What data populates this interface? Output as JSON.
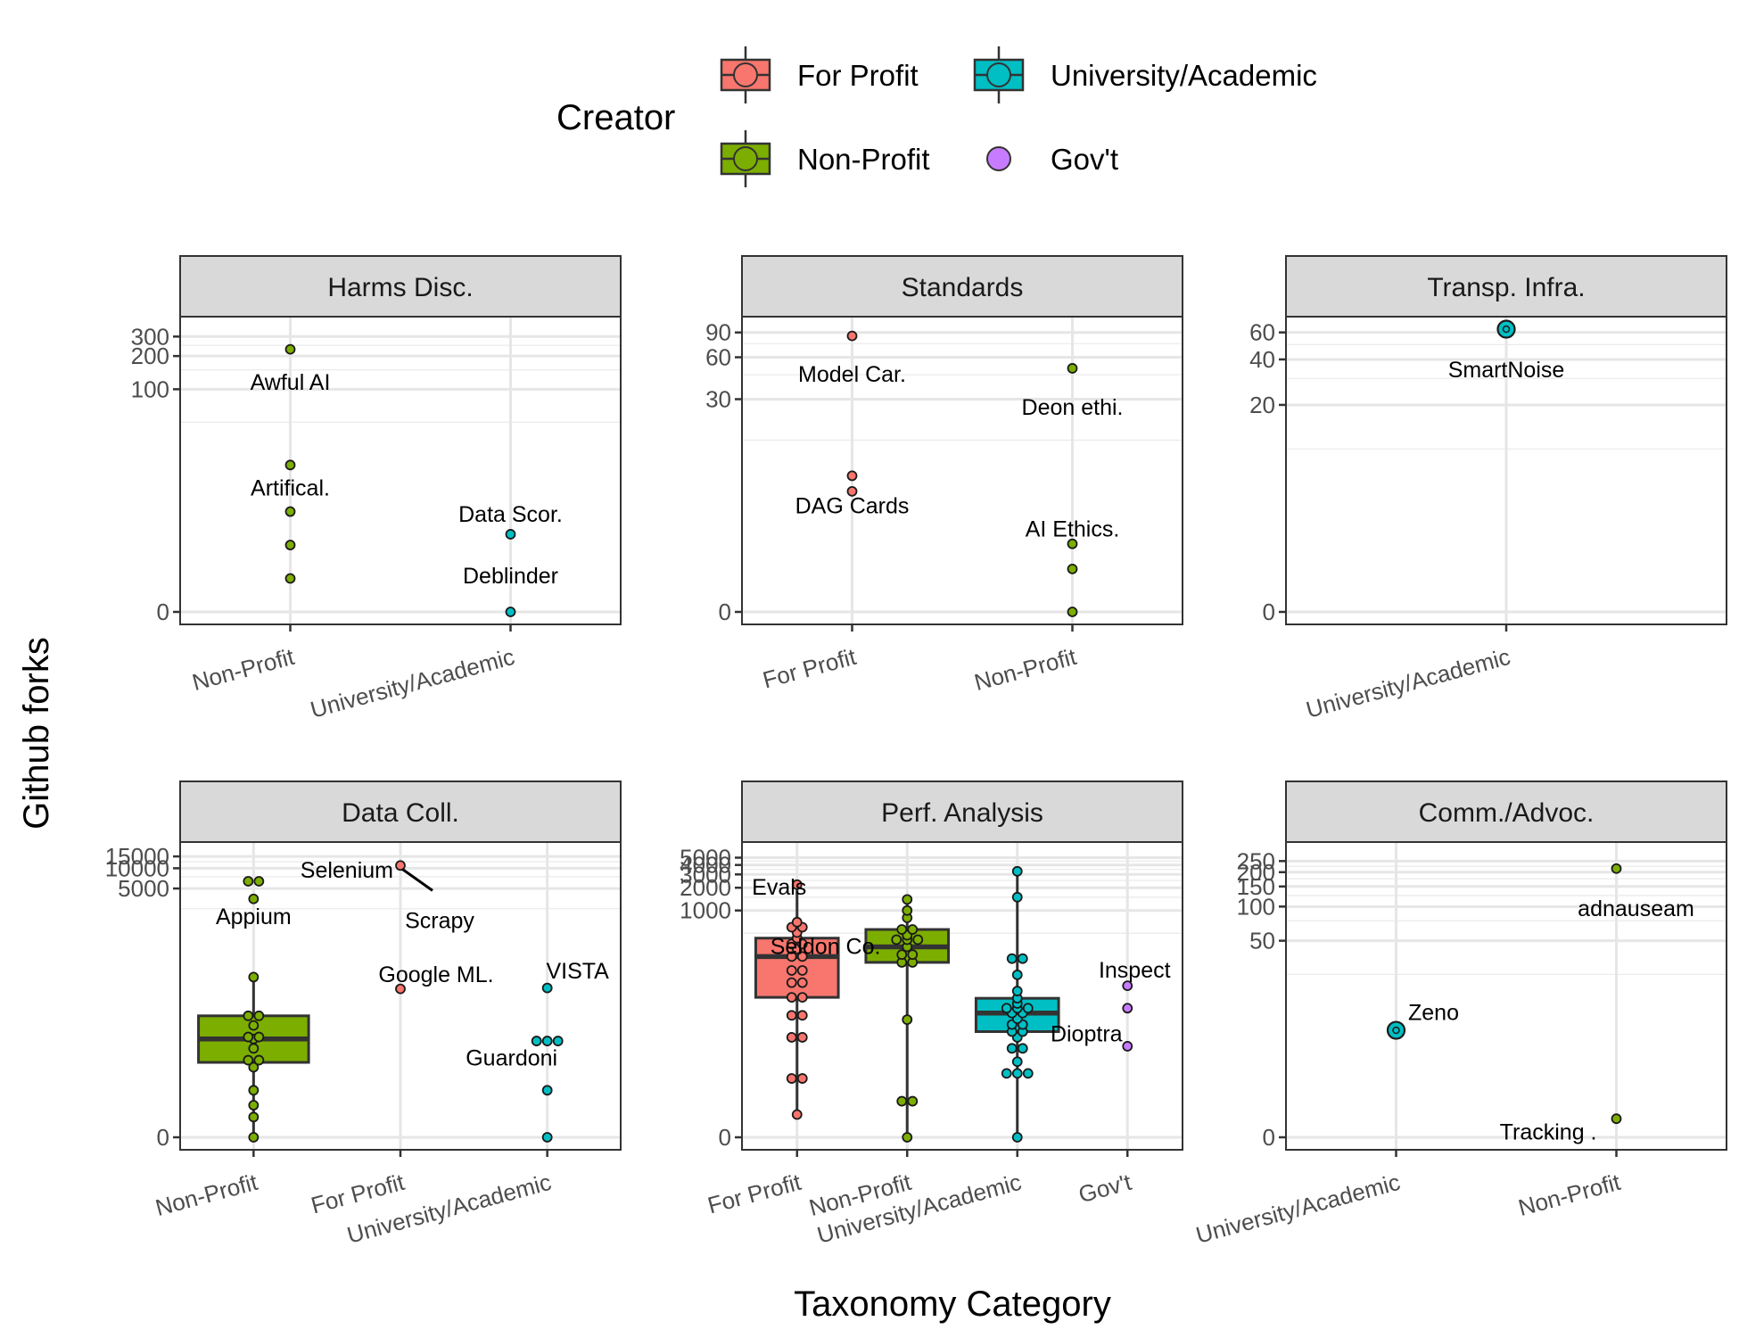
{
  "colors": {
    "For Profit": "#f8766d",
    "Non-Profit": "#7cae00",
    "University/Academic": "#00bfc4",
    "Gov't": "#c77cff"
  },
  "legend": {
    "title": "Creator",
    "items": [
      {
        "label": "For Profit",
        "box": true
      },
      {
        "label": "University/Academic",
        "box": true
      },
      {
        "label": "Non-Profit",
        "box": true
      },
      {
        "label": "Gov't",
        "box": false
      }
    ]
  },
  "axis_titles": {
    "x": "Taxonomy Category",
    "y": "Github forks"
  },
  "chart_data": [
    {
      "type": "scatter",
      "facet": "Harms Disc.",
      "y_scale": "pseudo-log",
      "categories": [
        "Non-Profit",
        "University/Academic"
      ],
      "yticks": [
        0,
        100,
        200,
        300
      ],
      "points": [
        {
          "cat": "Non-Profit",
          "y": 1
        },
        {
          "cat": "Non-Profit",
          "y": 3
        },
        {
          "cat": "Non-Profit",
          "y": 7
        },
        {
          "cat": "Non-Profit",
          "y": 20
        },
        {
          "cat": "Non-Profit",
          "y": 230
        },
        {
          "cat": "University/Academic",
          "y": 0
        },
        {
          "cat": "University/Academic",
          "y": 4
        }
      ],
      "labels": [
        {
          "text": "Awful AI",
          "cat": "Non-Profit",
          "y": 115
        },
        {
          "text": "Artifical.",
          "cat": "Non-Profit",
          "y": 12
        },
        {
          "text": "Data Scor.",
          "cat": "University/Academic",
          "y": 6.5
        },
        {
          "text": "Deblinder",
          "cat": "University/Academic",
          "y": 1.1
        }
      ]
    },
    {
      "type": "scatter",
      "facet": "Standards",
      "y_scale": "pseudo-log",
      "categories": [
        "For Profit",
        "Non-Profit"
      ],
      "yticks": [
        0,
        30,
        60,
        90
      ],
      "points": [
        {
          "cat": "For Profit",
          "y": 6
        },
        {
          "cat": "For Profit",
          "y": 8
        },
        {
          "cat": "For Profit",
          "y": 85
        },
        {
          "cat": "Non-Profit",
          "y": 0
        },
        {
          "cat": "Non-Profit",
          "y": 1
        },
        {
          "cat": "Non-Profit",
          "y": 2
        },
        {
          "cat": "Non-Profit",
          "y": 50
        }
      ],
      "labels": [
        {
          "text": "Model Car.",
          "cat": "For Profit",
          "y": 45
        },
        {
          "text": "DAG Cards",
          "cat": "For Profit",
          "y": 4.5
        },
        {
          "text": "Deon ethi.",
          "cat": "Non-Profit",
          "y": 26
        },
        {
          "text": "AI Ethics.",
          "cat": "Non-Profit",
          "y": 2.8
        }
      ]
    },
    {
      "type": "scatter",
      "facet": "Transp. Infra.",
      "y_scale": "pseudo-log",
      "categories": [
        "University/Academic"
      ],
      "yticks": [
        0,
        20,
        40,
        60
      ],
      "points": [
        {
          "cat": "University/Academic",
          "y": 63,
          "count": 2
        }
      ],
      "labels": [
        {
          "text": "SmartNoise",
          "cat": "University/Academic",
          "y": 34
        }
      ]
    },
    {
      "type": "box",
      "facet": "Data Coll.",
      "y_scale": "pseudo-log",
      "categories": [
        "Non-Profit",
        "For Profit",
        "University/Academic"
      ],
      "yticks": [
        0,
        5000,
        10000,
        15000
      ],
      "boxes": [
        {
          "cat": "Non-Profit",
          "min": 0,
          "q1": 12,
          "median": 28,
          "q3": 63,
          "max": 240
        }
      ],
      "points": [
        {
          "cat": "Non-Profit",
          "y": 0
        },
        {
          "cat": "Non-Profit",
          "y": 1
        },
        {
          "cat": "Non-Profit",
          "y": 2
        },
        {
          "cat": "Non-Profit",
          "y": 4
        },
        {
          "cat": "Non-Profit",
          "y": 10
        },
        {
          "cat": "Non-Profit",
          "y": 13
        },
        {
          "cat": "Non-Profit",
          "y": 13
        },
        {
          "cat": "Non-Profit",
          "y": 20
        },
        {
          "cat": "Non-Profit",
          "y": 28
        },
        {
          "cat": "Non-Profit",
          "y": 30
        },
        {
          "cat": "Non-Profit",
          "y": 30
        },
        {
          "cat": "Non-Profit",
          "y": 45
        },
        {
          "cat": "Non-Profit",
          "y": 63
        },
        {
          "cat": "Non-Profit",
          "y": 63
        },
        {
          "cat": "Non-Profit",
          "y": 240
        },
        {
          "cat": "Non-Profit",
          "y": 3500
        },
        {
          "cat": "Non-Profit",
          "y": 6400
        },
        {
          "cat": "Non-Profit",
          "y": 6400
        },
        {
          "cat": "For Profit",
          "y": 160
        },
        {
          "cat": "For Profit",
          "y": 11000
        },
        {
          "cat": "University/Academic",
          "y": 0
        },
        {
          "cat": "University/Academic",
          "y": 4
        },
        {
          "cat": "University/Academic",
          "y": 26
        },
        {
          "cat": "University/Academic",
          "y": 26
        },
        {
          "cat": "University/Academic",
          "y": 26
        },
        {
          "cat": "University/Academic",
          "y": 165
        }
      ],
      "labels": [
        {
          "text": "Selenium",
          "cat": "For Profit",
          "y": 9200,
          "anchor": "end",
          "dx": -8
        },
        {
          "text": "Appium",
          "cat": "Non-Profit",
          "y": 1900
        },
        {
          "text": "Scrapy",
          "cat": "For Profit",
          "y": 1650,
          "anchor": "middle",
          "dx": 44
        },
        {
          "text": "Google ML.",
          "cat": "For Profit",
          "y": 260,
          "dx": 40
        },
        {
          "text": "VISTA",
          "cat": "University/Academic",
          "y": 290,
          "dx": 34
        },
        {
          "text": "Guardoni",
          "cat": "University/Academic",
          "y": 14,
          "dx": -40
        }
      ]
    },
    {
      "type": "box",
      "facet": "Perf. Analysis",
      "y_scale": "pseudo-log",
      "categories": [
        "For Profit",
        "Non-Profit",
        "University/Academic",
        "Gov't"
      ],
      "yticks": [
        0,
        1000,
        2000,
        3000,
        4000,
        5000
      ],
      "boxes": [
        {
          "cat": "For Profit",
          "min": 1,
          "q1": 70,
          "median": 245,
          "q3": 430,
          "max": 2200
        },
        {
          "cat": "Non-Profit",
          "min": 0,
          "q1": 205,
          "median": 330,
          "q3": 560,
          "max": 1400
        },
        {
          "cat": "University/Academic",
          "min": 0,
          "q1": 24,
          "median": 43,
          "q3": 68,
          "max": 3300
        }
      ],
      "points": [
        {
          "cat": "For Profit",
          "y": 1
        },
        {
          "cat": "For Profit",
          "y": 5
        },
        {
          "cat": "For Profit",
          "y": 5
        },
        {
          "cat": "For Profit",
          "y": 20
        },
        {
          "cat": "For Profit",
          "y": 20
        },
        {
          "cat": "For Profit",
          "y": 40
        },
        {
          "cat": "For Profit",
          "y": 40
        },
        {
          "cat": "For Profit",
          "y": 70
        },
        {
          "cat": "For Profit",
          "y": 70
        },
        {
          "cat": "For Profit",
          "y": 110
        },
        {
          "cat": "For Profit",
          "y": 110
        },
        {
          "cat": "For Profit",
          "y": 160
        },
        {
          "cat": "For Profit",
          "y": 160
        },
        {
          "cat": "For Profit",
          "y": 245
        },
        {
          "cat": "For Profit",
          "y": 245
        },
        {
          "cat": "For Profit",
          "y": 310
        },
        {
          "cat": "For Profit",
          "y": 360
        },
        {
          "cat": "For Profit",
          "y": 360
        },
        {
          "cat": "For Profit",
          "y": 430
        },
        {
          "cat": "For Profit",
          "y": 510
        },
        {
          "cat": "For Profit",
          "y": 600
        },
        {
          "cat": "For Profit",
          "y": 600
        },
        {
          "cat": "For Profit",
          "y": 700
        },
        {
          "cat": "For Profit",
          "y": 2200
        },
        {
          "cat": "Non-Profit",
          "y": 0
        },
        {
          "cat": "Non-Profit",
          "y": 2
        },
        {
          "cat": "Non-Profit",
          "y": 2
        },
        {
          "cat": "Non-Profit",
          "y": 35
        },
        {
          "cat": "Non-Profit",
          "y": 205
        },
        {
          "cat": "Non-Profit",
          "y": 205
        },
        {
          "cat": "Non-Profit",
          "y": 260
        },
        {
          "cat": "Non-Profit",
          "y": 260
        },
        {
          "cat": "Non-Profit",
          "y": 330
        },
        {
          "cat": "Non-Profit",
          "y": 410
        },
        {
          "cat": "Non-Profit",
          "y": 410
        },
        {
          "cat": "Non-Profit",
          "y": 410
        },
        {
          "cat": "Non-Profit",
          "y": 470
        },
        {
          "cat": "Non-Profit",
          "y": 560
        },
        {
          "cat": "Non-Profit",
          "y": 560
        },
        {
          "cat": "Non-Profit",
          "y": 800
        },
        {
          "cat": "Non-Profit",
          "y": 1000
        },
        {
          "cat": "Non-Profit",
          "y": 1400
        },
        {
          "cat": "University/Academic",
          "y": 0
        },
        {
          "cat": "University/Academic",
          "y": 6
        },
        {
          "cat": "University/Academic",
          "y": 6
        },
        {
          "cat": "University/Academic",
          "y": 6
        },
        {
          "cat": "University/Academic",
          "y": 9
        },
        {
          "cat": "University/Academic",
          "y": 14
        },
        {
          "cat": "University/Academic",
          "y": 14
        },
        {
          "cat": "University/Academic",
          "y": 20
        },
        {
          "cat": "University/Academic",
          "y": 24
        },
        {
          "cat": "University/Academic",
          "y": 24
        },
        {
          "cat": "University/Academic",
          "y": 30
        },
        {
          "cat": "University/Academic",
          "y": 30
        },
        {
          "cat": "University/Academic",
          "y": 36
        },
        {
          "cat": "University/Academic",
          "y": 43
        },
        {
          "cat": "University/Academic",
          "y": 43
        },
        {
          "cat": "University/Academic",
          "y": 50
        },
        {
          "cat": "University/Academic",
          "y": 50
        },
        {
          "cat": "University/Academic",
          "y": 50
        },
        {
          "cat": "University/Academic",
          "y": 58
        },
        {
          "cat": "University/Academic",
          "y": 68
        },
        {
          "cat": "University/Academic",
          "y": 85
        },
        {
          "cat": "University/Academic",
          "y": 140
        },
        {
          "cat": "University/Academic",
          "y": 230
        },
        {
          "cat": "University/Academic",
          "y": 230
        },
        {
          "cat": "University/Academic",
          "y": 1500
        },
        {
          "cat": "University/Academic",
          "y": 3300
        },
        {
          "cat": "Gov't",
          "y": 15
        },
        {
          "cat": "Gov't",
          "y": 50
        },
        {
          "cat": "Gov't",
          "y": 100
        }
      ],
      "labels": [
        {
          "text": "Evals",
          "cat": "For Profit",
          "y": 2000,
          "dx": -20
        },
        {
          "text": "Seldon Co.",
          "cat": "For Profit",
          "y": 330,
          "anchor": "start",
          "dx": -30
        },
        {
          "text": "Inspect",
          "cat": "Gov't",
          "y": 160,
          "dx": 8
        },
        {
          "text": "Dioptra",
          "cat": "Gov't",
          "y": 22,
          "dx": -46
        }
      ]
    },
    {
      "type": "scatter",
      "facet": "Comm./Advoc.",
      "y_scale": "pseudo-log",
      "categories": [
        "University/Academic",
        "Non-Profit"
      ],
      "yticks": [
        0,
        50,
        100,
        150,
        200,
        250
      ],
      "points": [
        {
          "cat": "University/Academic",
          "y": 7.5,
          "count": 2
        },
        {
          "cat": "Non-Profit",
          "y": 0.45
        },
        {
          "cat": "Non-Profit",
          "y": 215
        }
      ],
      "labels": [
        {
          "text": "Zeno",
          "cat": "University/Academic",
          "y": 11,
          "dx": 42
        },
        {
          "text": "adnauseam",
          "cat": "Non-Profit",
          "y": 95,
          "dx": 22
        },
        {
          "text": "Tracking .",
          "cat": "Non-Profit",
          "y": 0.1,
          "anchor": "end",
          "dx": -22
        }
      ]
    }
  ]
}
